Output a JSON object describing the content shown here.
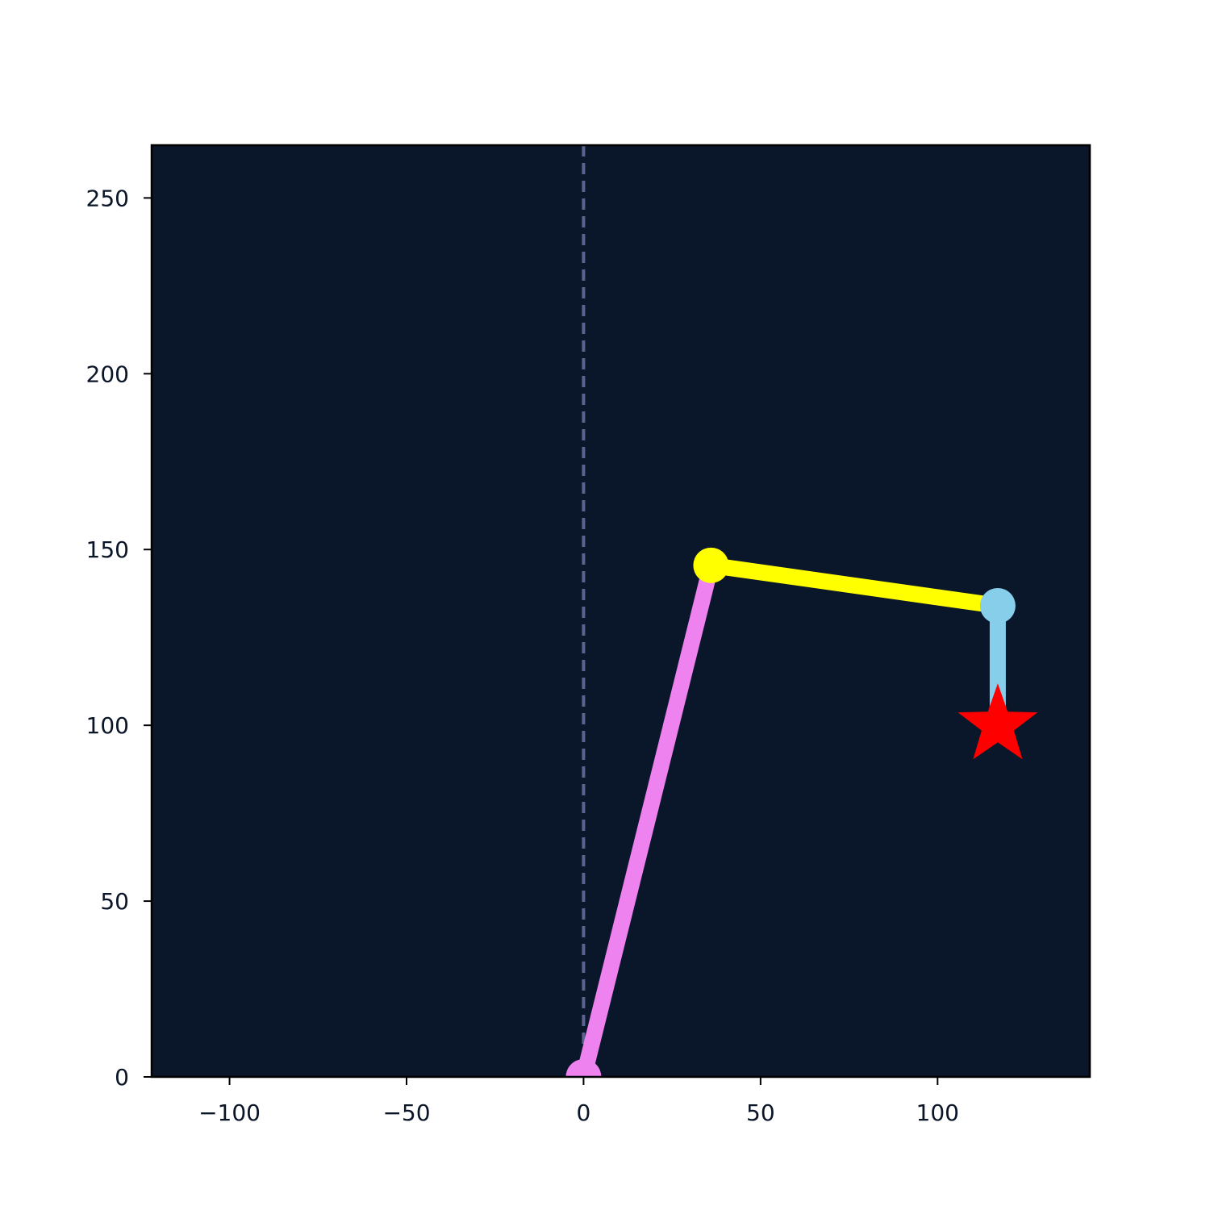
{
  "chart_data": {
    "type": "line",
    "title": "",
    "xlabel": "",
    "ylabel": "",
    "xlim": [
      -122,
      143
    ],
    "ylim": [
      0,
      265
    ],
    "grid": false,
    "colors": {
      "figure_background": "#ffffff",
      "axes_background": "#0a162a",
      "axes_edge": "#000000",
      "reference_line": "#5b6491",
      "tick_label": "#0a1628"
    },
    "xticks": [
      {
        "value": -100,
        "label": "−100"
      },
      {
        "value": -50,
        "label": "−50"
      },
      {
        "value": 0,
        "label": "0"
      },
      {
        "value": 50,
        "label": "50"
      },
      {
        "value": 100,
        "label": "100"
      }
    ],
    "yticks": [
      {
        "value": 0,
        "label": "0"
      },
      {
        "value": 50,
        "label": "50"
      },
      {
        "value": 100,
        "label": "100"
      },
      {
        "value": 150,
        "label": "150"
      },
      {
        "value": 200,
        "label": "200"
      },
      {
        "value": 250,
        "label": "250"
      }
    ],
    "reference_line": {
      "x": 0,
      "style": "dashed"
    },
    "segments": [
      {
        "from": [
          0,
          0
        ],
        "to": [
          36,
          145.5
        ],
        "color": "#ee82ee"
      },
      {
        "from": [
          36,
          145.5
        ],
        "to": [
          117,
          134
        ],
        "color": "#ffff00"
      },
      {
        "from": [
          117,
          134
        ],
        "to": [
          117,
          100
        ],
        "color": "#87ceeb"
      }
    ],
    "joints": [
      {
        "x": 0,
        "y": 0,
        "color": "#ee82ee"
      },
      {
        "x": 36,
        "y": 145.5,
        "color": "#ffff00"
      },
      {
        "x": 117,
        "y": 134,
        "color": "#87ceeb"
      }
    ],
    "target": {
      "x": 117,
      "y": 100,
      "marker": "star",
      "color": "#ff0000"
    }
  }
}
